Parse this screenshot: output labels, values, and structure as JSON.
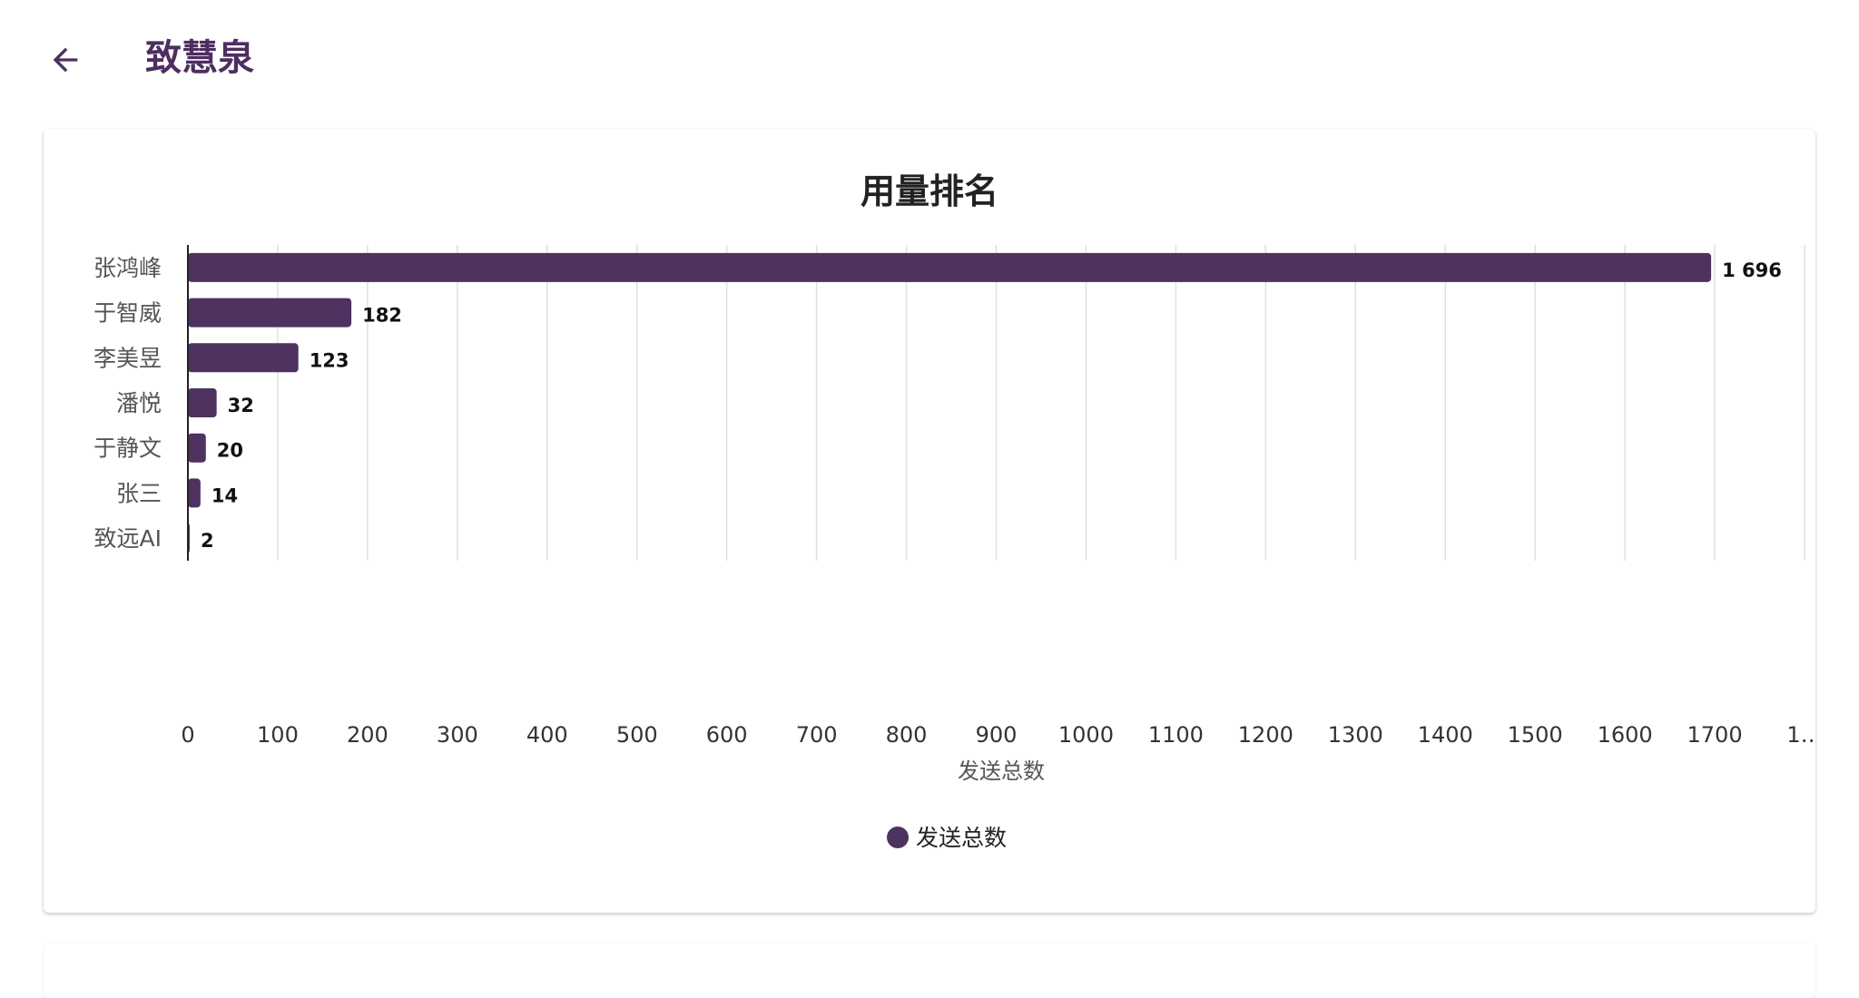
{
  "header": {
    "title": "致慧泉",
    "back_icon": "arrow-left-icon"
  },
  "colors": {
    "accent": "#4e3260",
    "title": "#4e2e61",
    "grid": "#e0e0e0",
    "axis": "#222222",
    "label": "#555555"
  },
  "chart_data": {
    "type": "bar",
    "orientation": "horizontal",
    "title": "用量排名",
    "xlabel": "发送总数",
    "ylabel": "",
    "categories": [
      "张鸿峰",
      "于智威",
      "李美昱",
      "潘悦",
      "于静文",
      "张三",
      "致远AI"
    ],
    "series": [
      {
        "name": "发送总数",
        "values": [
          1696,
          182,
          123,
          32,
          20,
          14,
          2
        ],
        "value_labels": [
          "1 696",
          "182",
          "123",
          "32",
          "20",
          "14",
          "2"
        ]
      }
    ],
    "xlim": [
      0,
      1800
    ],
    "x_ticks": [
      "0",
      "100",
      "200",
      "300",
      "400",
      "500",
      "600",
      "700",
      "800",
      "900",
      "1000",
      "1100",
      "1200",
      "1300",
      "1400",
      "1500",
      "1600",
      "1700",
      "1…"
    ],
    "grid": true,
    "legend": "bottom-center"
  }
}
